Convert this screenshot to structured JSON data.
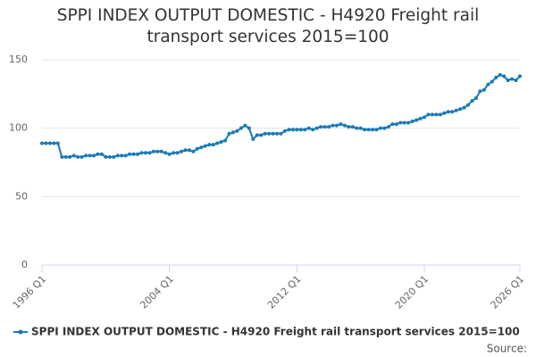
{
  "chart_data": {
    "type": "line",
    "title": "SPPI INDEX OUTPUT DOMESTIC - H4920 Freight rail transport services 2015=100",
    "categories": [
      "1996 Q1",
      null,
      null,
      null,
      null,
      null,
      null,
      null,
      null,
      null,
      null,
      null,
      null,
      null,
      null,
      null,
      null,
      null,
      null,
      null,
      null,
      null,
      null,
      null,
      null,
      null,
      null,
      null,
      null,
      null,
      null,
      null,
      "2004 Q1",
      null,
      null,
      null,
      null,
      null,
      null,
      null,
      null,
      null,
      null,
      null,
      null,
      null,
      null,
      null,
      null,
      null,
      null,
      null,
      null,
      null,
      null,
      null,
      null,
      null,
      null,
      null,
      null,
      null,
      null,
      null,
      "2012 Q1",
      null,
      null,
      null,
      null,
      null,
      null,
      null,
      null,
      null,
      null,
      null,
      null,
      null,
      null,
      null,
      null,
      null,
      null,
      null,
      null,
      null,
      null,
      null,
      null,
      null,
      null,
      null,
      null,
      null,
      null,
      null,
      "2020 Q1",
      null,
      null,
      null,
      null,
      null,
      null,
      null,
      null,
      null,
      null,
      null,
      null,
      null,
      null,
      null,
      null,
      null,
      null,
      null,
      null,
      null,
      null,
      null,
      "2026 Q1"
    ],
    "series": [
      {
        "name": "SPPI INDEX OUTPUT DOMESTIC - H4920 Freight rail transport services 2015=100",
        "color": "#1a7ab5",
        "values": [
          89,
          89,
          89,
          89,
          89,
          79,
          79,
          79,
          80,
          79,
          79,
          80,
          80,
          80,
          81,
          81,
          79,
          79,
          79,
          80,
          80,
          80,
          81,
          81,
          81,
          82,
          82,
          82,
          83,
          83,
          83,
          82,
          81,
          82,
          82,
          83,
          84,
          84,
          83,
          85,
          86,
          87,
          88,
          88,
          89,
          90,
          91,
          96,
          97,
          98,
          100,
          102,
          100,
          92,
          95,
          95,
          96,
          96,
          96,
          96,
          96,
          98,
          99,
          99,
          99,
          99,
          99,
          100,
          99,
          100,
          101,
          101,
          101,
          102,
          102,
          103,
          102,
          101,
          101,
          100,
          100,
          99,
          99,
          99,
          99,
          100,
          100,
          101,
          103,
          103,
          104,
          104,
          104,
          105,
          106,
          107,
          108,
          110,
          110,
          110,
          110,
          111,
          112,
          112,
          113,
          114,
          115,
          117,
          120,
          122,
          127,
          128,
          132,
          134,
          137,
          139,
          138,
          135,
          136,
          135,
          138
        ]
      }
    ],
    "ylim": [
      0,
      150
    ],
    "yticks": [
      0,
      50,
      100,
      150
    ],
    "grid": true,
    "source": "Source:"
  }
}
